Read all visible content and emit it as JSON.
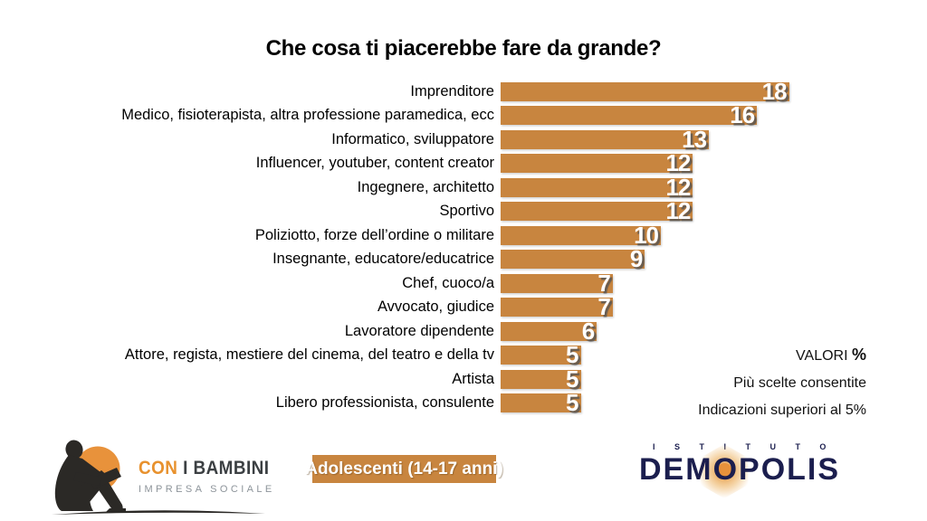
{
  "title": "Che cosa ti piacerebbe fare da grande?",
  "chart_data": {
    "type": "bar",
    "orientation": "horizontal",
    "title": "Che cosa ti piacerebbe fare da grande?",
    "categories": [
      "Imprenditore",
      "Medico, fisioterapista, altra professione paramedica, ecc",
      "Informatico, sviluppatore",
      "Influencer, youtuber, content creator",
      "Ingegnere, architetto",
      "Sportivo",
      "Poliziotto, forze dell’ordine o militare",
      "Insegnante, educatore/educatrice",
      "Chef, cuoco/a",
      "Avvocato, giudice",
      "Lavoratore dipendente",
      "Attore, regista, mestiere del cinema, del teatro e della tv",
      "Artista",
      "Libero professionista, consulente"
    ],
    "values": [
      18,
      16,
      13,
      12,
      12,
      12,
      10,
      9,
      7,
      7,
      6,
      5,
      5,
      5
    ],
    "unit": "%",
    "xlim": [
      0,
      18
    ],
    "grid": false,
    "legend": "none",
    "value_label_position": "inside-end",
    "bar_color": "#C8853F"
  },
  "annotations": {
    "valori_label": "VALORI",
    "valori_pct": "%",
    "note1": "Più scelte consentite",
    "note2": "Indicazioni superiori al 5%"
  },
  "footer": {
    "con_i_bambini": {
      "icon": "child-reading-silhouette",
      "name_part1": "CON",
      "name_part2": "I BAMBINI",
      "subtitle": "IMPRESA SOCIALE"
    },
    "sample_badge": "Adolescenti (14-17 anni)",
    "demopolis": {
      "istituto": "ISTITUTO",
      "name": "DEMOPOLIS"
    }
  },
  "colors": {
    "bar": "#C8853F",
    "accent_orange": "#E8912D",
    "logo_circle_orange": "#E8923B",
    "navy": "#1B1E4E",
    "background": "#FFFFFF"
  }
}
